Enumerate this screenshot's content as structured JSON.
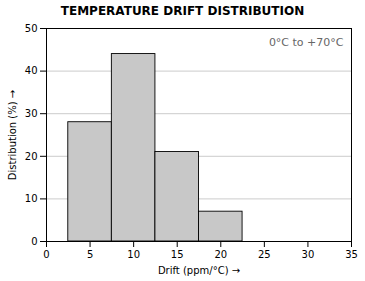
{
  "chart_data": {
    "type": "histogram",
    "title": "TEMPERATURE DRIFT DISTRIBUTION",
    "xlabel": "Drift (ppm/°C)",
    "ylabel": "Distribution (%)",
    "annotation": "0°C to +70°C",
    "bins": [
      2.5,
      7.5,
      12.5,
      17.5,
      22.5
    ],
    "values": [
      28,
      44,
      21,
      7
    ],
    "color": "#c8c8c8",
    "xlim": [
      0,
      35
    ],
    "xticks": [
      0,
      5,
      10,
      15,
      20,
      25,
      30,
      35
    ],
    "ylim": [
      0,
      50
    ],
    "yticks": [
      0,
      10,
      20,
      30,
      40,
      50
    ],
    "grid": true
  }
}
